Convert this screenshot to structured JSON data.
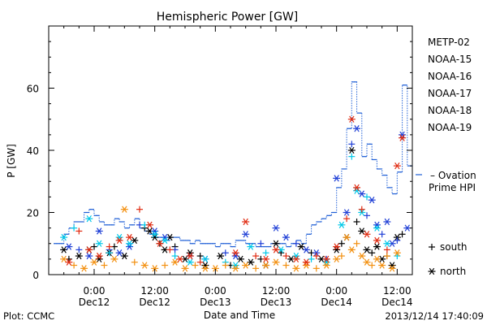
{
  "chart_data": {
    "type": "scatter",
    "title": "Hemispheric Power [GW]",
    "ylabel": "P [GW]",
    "xlabel": "Date and Time",
    "ylim": [
      0,
      80
    ],
    "xlim": [
      -9,
      63
    ],
    "x_unit": "hours from 2013-12-12 00:00 UT",
    "y_ticks": [
      0,
      20,
      40,
      60
    ],
    "x_ticks": [
      {
        "x": 0,
        "time": "0:00",
        "date": "Dec12"
      },
      {
        "x": 12,
        "time": "12:00",
        "date": "Dec12"
      },
      {
        "x": 24,
        "time": "0:00",
        "date": "Dec13"
      },
      {
        "x": 36,
        "time": "12:00",
        "date": "Dec13"
      },
      {
        "x": 48,
        "time": "0:00",
        "date": "Dec14"
      },
      {
        "x": 60,
        "time": "12:00",
        "date": "Dec14"
      }
    ],
    "series": [
      {
        "name": "METP-02",
        "color": "#000000",
        "points": [
          [
            -6,
            8
          ],
          [
            -5,
            5
          ],
          [
            -3,
            6
          ],
          [
            -1,
            8
          ],
          [
            0,
            9
          ],
          [
            1,
            5
          ],
          [
            3,
            7
          ],
          [
            4,
            9
          ],
          [
            6,
            6
          ],
          [
            8,
            11
          ],
          [
            10,
            15
          ],
          [
            11,
            14
          ],
          [
            12,
            12
          ],
          [
            13,
            10
          ],
          [
            14,
            8
          ],
          [
            15,
            12
          ],
          [
            16,
            9
          ],
          [
            18,
            5
          ],
          [
            19,
            7
          ],
          [
            21,
            6
          ],
          [
            22,
            3
          ],
          [
            25,
            6
          ],
          [
            27,
            3
          ],
          [
            29,
            5
          ],
          [
            31,
            4
          ],
          [
            33,
            5
          ],
          [
            34,
            3
          ],
          [
            36,
            10
          ],
          [
            37,
            7
          ],
          [
            39,
            5
          ],
          [
            41,
            9
          ],
          [
            43,
            7
          ],
          [
            45,
            5
          ],
          [
            48,
            8
          ],
          [
            49,
            10
          ],
          [
            50,
            12
          ],
          [
            51,
            40
          ],
          [
            52,
            17
          ],
          [
            53,
            14
          ],
          [
            54,
            8
          ],
          [
            55,
            7
          ],
          [
            56,
            9
          ],
          [
            57,
            5
          ],
          [
            58,
            6
          ],
          [
            59,
            3
          ],
          [
            60,
            12
          ],
          [
            61,
            13
          ]
        ]
      },
      {
        "name": "NOAA-15",
        "color": "#1f3fd6",
        "points": [
          [
            -5,
            9
          ],
          [
            -3,
            8
          ],
          [
            -1,
            6
          ],
          [
            1,
            14
          ],
          [
            3,
            8
          ],
          [
            5,
            7
          ],
          [
            7,
            9
          ],
          [
            9,
            16
          ],
          [
            12,
            14
          ],
          [
            14,
            12
          ],
          [
            16,
            8
          ],
          [
            19,
            6
          ],
          [
            22,
            5
          ],
          [
            26,
            7
          ],
          [
            28,
            6
          ],
          [
            30,
            13
          ],
          [
            33,
            10
          ],
          [
            36,
            15
          ],
          [
            38,
            12
          ],
          [
            40,
            10
          ],
          [
            42,
            8
          ],
          [
            44,
            7
          ],
          [
            46,
            5
          ],
          [
            48,
            31
          ],
          [
            50,
            20
          ],
          [
            51,
            42
          ],
          [
            52,
            47
          ],
          [
            53,
            26
          ],
          [
            54,
            19
          ],
          [
            55,
            24
          ],
          [
            56,
            16
          ],
          [
            57,
            13
          ],
          [
            58,
            17
          ],
          [
            59,
            10
          ],
          [
            60,
            11
          ],
          [
            61,
            45
          ],
          [
            62,
            15
          ]
        ]
      },
      {
        "name": "NOAA-16",
        "color": "#00c8e8",
        "points": [
          [
            -6,
            12
          ],
          [
            -4,
            15
          ],
          [
            -1,
            18
          ],
          [
            1,
            10
          ],
          [
            3,
            7
          ],
          [
            5,
            12
          ],
          [
            7,
            10
          ],
          [
            10,
            16
          ],
          [
            12,
            13
          ],
          [
            14,
            11
          ],
          [
            16,
            6
          ],
          [
            19,
            4
          ],
          [
            22,
            5
          ],
          [
            26,
            4
          ],
          [
            28,
            3
          ],
          [
            31,
            9
          ],
          [
            34,
            7
          ],
          [
            37,
            8
          ],
          [
            40,
            6
          ],
          [
            43,
            5
          ],
          [
            46,
            4
          ],
          [
            49,
            16
          ],
          [
            51,
            38
          ],
          [
            52,
            27
          ],
          [
            53,
            20
          ],
          [
            54,
            25
          ],
          [
            56,
            15
          ],
          [
            58,
            10
          ],
          [
            60,
            6
          ]
        ]
      },
      {
        "name": "NOAA-17",
        "color": "#00e066",
        "points": []
      },
      {
        "name": "NOAA-18",
        "color": "#f39010",
        "points": [
          [
            -6,
            5
          ],
          [
            -4,
            3
          ],
          [
            -2,
            2
          ],
          [
            0,
            4
          ],
          [
            2,
            3
          ],
          [
            4,
            5
          ],
          [
            6,
            21
          ],
          [
            8,
            4
          ],
          [
            10,
            3
          ],
          [
            12,
            2
          ],
          [
            14,
            3
          ],
          [
            16,
            4
          ],
          [
            18,
            2
          ],
          [
            20,
            3
          ],
          [
            22,
            2
          ],
          [
            24,
            2
          ],
          [
            26,
            3
          ],
          [
            28,
            2
          ],
          [
            30,
            3
          ],
          [
            32,
            2
          ],
          [
            34,
            3
          ],
          [
            36,
            4
          ],
          [
            38,
            3
          ],
          [
            40,
            2
          ],
          [
            42,
            3
          ],
          [
            44,
            2
          ],
          [
            46,
            3
          ],
          [
            48,
            5
          ],
          [
            49,
            6
          ],
          [
            50,
            12
          ],
          [
            51,
            8
          ],
          [
            52,
            10
          ],
          [
            53,
            6
          ],
          [
            54,
            4
          ],
          [
            55,
            3
          ],
          [
            56,
            5
          ],
          [
            57,
            3
          ],
          [
            58,
            6
          ],
          [
            59,
            2
          ],
          [
            60,
            7
          ]
        ]
      },
      {
        "name": "NOAA-19",
        "color": "#e02a10",
        "points": [
          [
            -5,
            4
          ],
          [
            -3,
            14
          ],
          [
            -1,
            8
          ],
          [
            1,
            6
          ],
          [
            3,
            9
          ],
          [
            5,
            11
          ],
          [
            7,
            12
          ],
          [
            9,
            21
          ],
          [
            11,
            16
          ],
          [
            13,
            10
          ],
          [
            15,
            8
          ],
          [
            17,
            5
          ],
          [
            19,
            6
          ],
          [
            21,
            4
          ],
          [
            28,
            7
          ],
          [
            30,
            17
          ],
          [
            32,
            6
          ],
          [
            34,
            5
          ],
          [
            36,
            8
          ],
          [
            38,
            6
          ],
          [
            40,
            5
          ],
          [
            42,
            4
          ],
          [
            44,
            6
          ],
          [
            46,
            5
          ],
          [
            48,
            9
          ],
          [
            50,
            18
          ],
          [
            51,
            50
          ],
          [
            52,
            28
          ],
          [
            53,
            21
          ],
          [
            54,
            13
          ],
          [
            56,
            11
          ],
          [
            58,
            8
          ],
          [
            60,
            35
          ],
          [
            61,
            44
          ]
        ]
      }
    ],
    "ovation": {
      "name": "– Ovation Prime HPI",
      "color": "#1f5fd6",
      "values": [
        [
          -8,
          10
        ],
        [
          -7,
          10
        ],
        [
          -6,
          13
        ],
        [
          -5,
          15
        ],
        [
          -4,
          17
        ],
        [
          -3,
          17
        ],
        [
          -2,
          20
        ],
        [
          -1,
          21
        ],
        [
          0,
          19
        ],
        [
          1,
          17
        ],
        [
          2,
          16
        ],
        [
          3,
          16
        ],
        [
          4,
          18
        ],
        [
          5,
          17
        ],
        [
          6,
          15
        ],
        [
          7,
          16
        ],
        [
          8,
          18
        ],
        [
          9,
          15
        ],
        [
          10,
          14
        ],
        [
          11,
          13
        ],
        [
          12,
          12
        ],
        [
          13,
          12
        ],
        [
          14,
          11
        ],
        [
          15,
          12
        ],
        [
          16,
          12
        ],
        [
          17,
          11
        ],
        [
          18,
          11
        ],
        [
          19,
          10
        ],
        [
          20,
          11
        ],
        [
          21,
          10
        ],
        [
          22,
          10
        ],
        [
          23,
          10
        ],
        [
          24,
          9
        ],
        [
          25,
          10
        ],
        [
          26,
          10
        ],
        [
          27,
          9
        ],
        [
          28,
          11
        ],
        [
          29,
          11
        ],
        [
          30,
          10
        ],
        [
          31,
          10
        ],
        [
          32,
          9
        ],
        [
          33,
          9
        ],
        [
          34,
          9
        ],
        [
          35,
          10
        ],
        [
          36,
          10
        ],
        [
          37,
          10
        ],
        [
          38,
          9
        ],
        [
          39,
          10
        ],
        [
          40,
          11
        ],
        [
          41,
          10
        ],
        [
          42,
          13
        ],
        [
          43,
          16
        ],
        [
          44,
          17
        ],
        [
          45,
          18
        ],
        [
          46,
          19
        ],
        [
          47,
          20
        ],
        [
          48,
          28
        ],
        [
          49,
          34
        ],
        [
          50,
          47
        ],
        [
          51,
          62
        ],
        [
          52,
          52
        ],
        [
          53,
          38
        ],
        [
          54,
          42
        ],
        [
          55,
          37
        ],
        [
          56,
          34
        ],
        [
          57,
          32
        ],
        [
          58,
          28
        ],
        [
          59,
          26
        ],
        [
          60,
          33
        ],
        [
          61,
          61
        ],
        [
          62,
          35
        ]
      ]
    },
    "symbol_legend": [
      {
        "marker": "+",
        "label": "south"
      },
      {
        "marker": "*",
        "label": "north"
      }
    ],
    "grid": false
  },
  "footer": {
    "left": "Plot: CCMC",
    "right": "2013/12/14 17:40:09"
  }
}
